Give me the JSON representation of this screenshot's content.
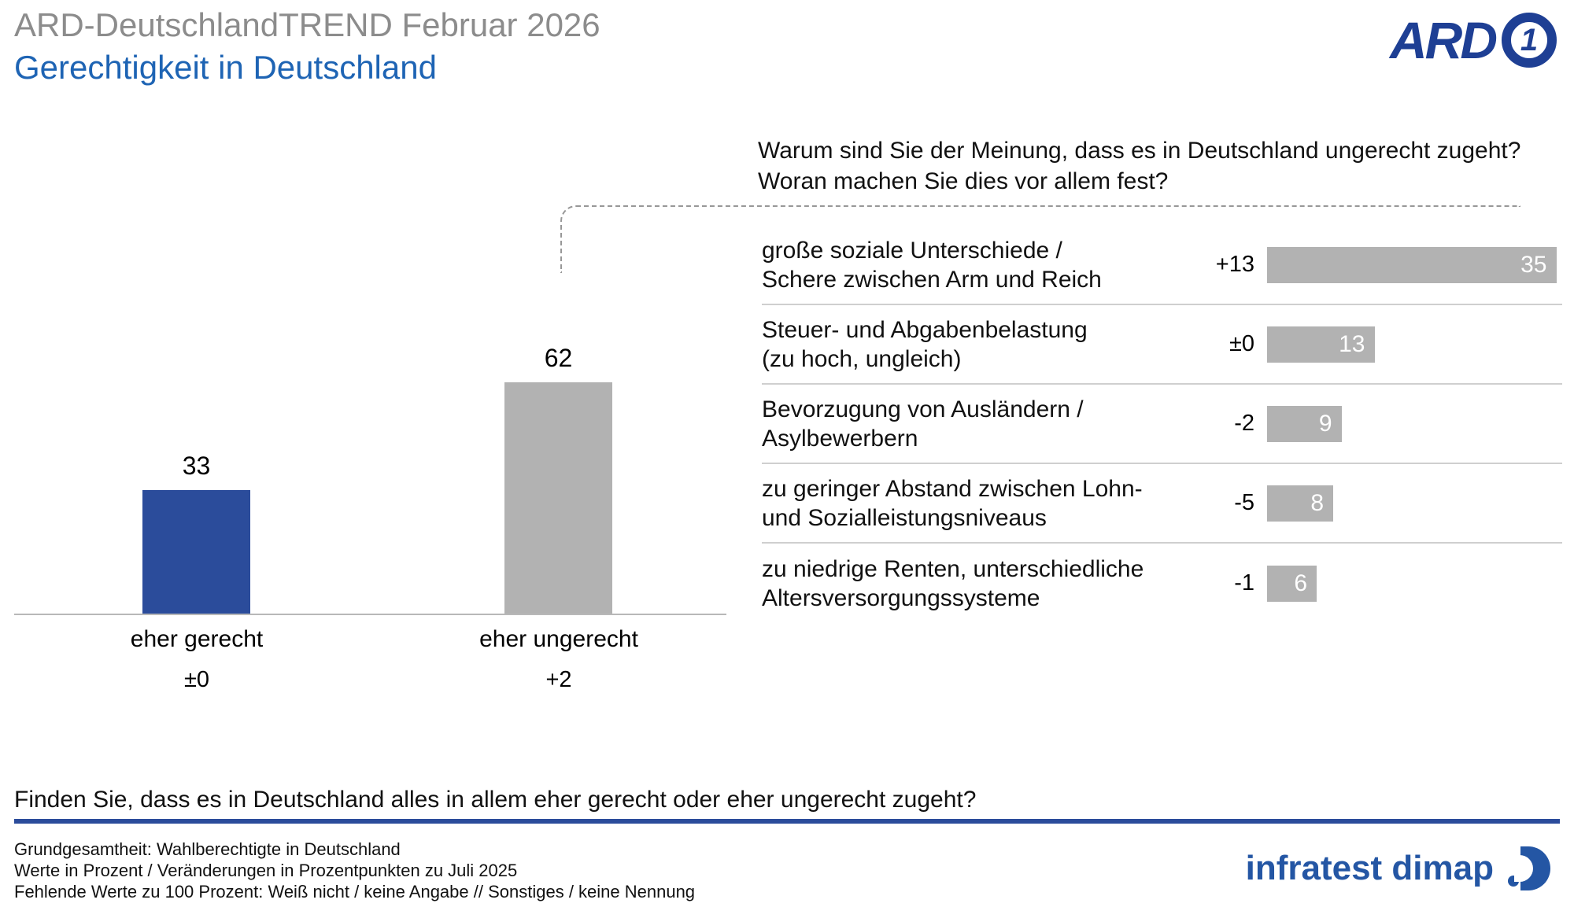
{
  "header": {
    "pretitle": "ARD-DeutschlandTREND Februar 2026",
    "title": "Gerechtigkeit in Deutschland",
    "logo_text": "ARD",
    "logo_badge": "1"
  },
  "colors": {
    "accent_blue": "#2b4c9b",
    "bar_gray": "#b2b2b2",
    "title_blue": "#1e64b4",
    "pretitle_gray": "#8c8c8c"
  },
  "chart_data": [
    {
      "type": "bar",
      "title": "Finden Sie, dass es in Deutschland alles in allem eher gerecht oder eher ungerecht zugeht?",
      "categories": [
        "eher gerecht",
        "eher ungerecht"
      ],
      "values": [
        33,
        62
      ],
      "changes": [
        "±0",
        "+2"
      ],
      "bar_colors": [
        "#2b4c9b",
        "#b2b2b2"
      ],
      "ylim": [
        0,
        70
      ],
      "grid": false,
      "legend": "none"
    },
    {
      "type": "bar",
      "orientation": "horizontal",
      "title_line1": "Warum sind Sie der Meinung, dass es in Deutschland ungerecht zugeht?",
      "title_line2": "Woran machen Sie dies vor allem fest?",
      "xlim": [
        0,
        40
      ],
      "grid": false,
      "legend": "none",
      "items": [
        {
          "label_line1": "große soziale Unterschiede /",
          "label_line2": "Schere zwischen Arm und Reich",
          "change": "+13",
          "value": 35
        },
        {
          "label_line1": "Steuer- und Abgabenbelastung",
          "label_line2": "(zu hoch, ungleich)",
          "change": "±0",
          "value": 13
        },
        {
          "label_line1": "Bevorzugung von Ausländern /",
          "label_line2": "Asylbewerbern",
          "change": "-2",
          "value": 9
        },
        {
          "label_line1": "zu geringer Abstand zwischen Lohn-",
          "label_line2": "und Sozialleistungsniveaus",
          "change": "-5",
          "value": 8
        },
        {
          "label_line1": "zu niedrige Renten, unterschiedliche",
          "label_line2": "Altersversorgungssysteme",
          "change": "-1",
          "value": 6
        }
      ]
    }
  ],
  "bottom_question": "Finden Sie, dass es in Deutschland alles in allem eher gerecht oder eher ungerecht zugeht?",
  "footer": {
    "line1": "Grundgesamtheit: Wahlberechtigte in Deutschland",
    "line2": "Werte in Prozent / Veränderungen in Prozentpunkten zu Juli 2025",
    "line3": "Fehlende Werte zu 100 Prozent: Weiß nicht / keine Angabe // Sonstiges / keine Nennung",
    "brand": "infratest dimap"
  }
}
